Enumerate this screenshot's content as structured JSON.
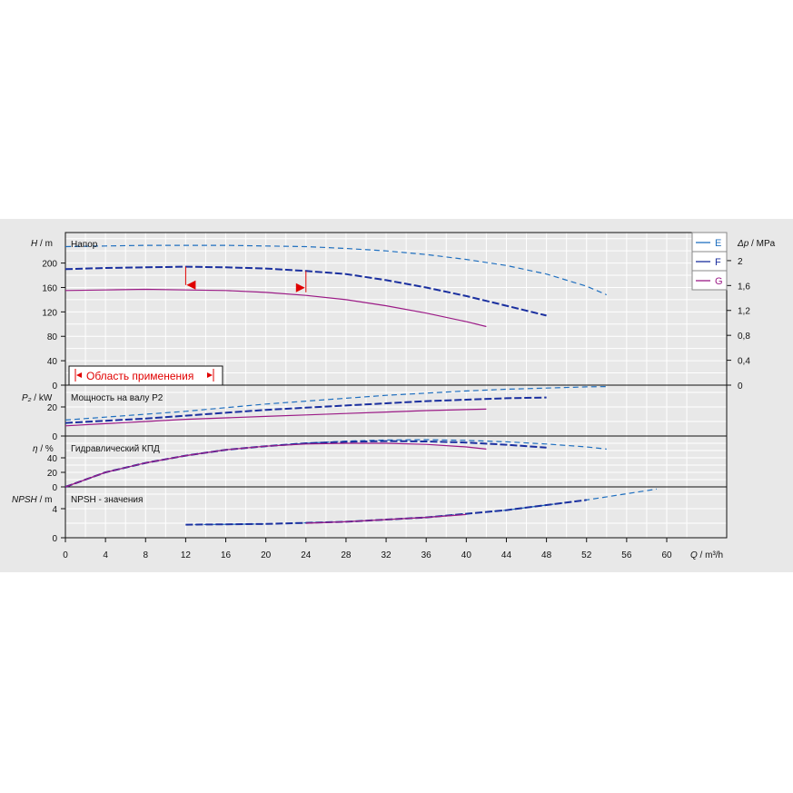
{
  "chart_data": {
    "type": "line",
    "x_axis": {
      "label_var": "Q",
      "label_unit": " / m³/h",
      "range": [
        0,
        62
      ],
      "ticks": [
        0,
        4,
        8,
        12,
        16,
        20,
        24,
        28,
        32,
        36,
        40,
        44,
        48,
        52,
        56,
        60
      ]
    },
    "grid": true,
    "legend": {
      "placement": "right",
      "entries": [
        {
          "label": "E",
          "color": "#1f6fbf",
          "dash": "6,4"
        },
        {
          "label": "F",
          "color": "#1a2f9f",
          "dash": "8,3"
        },
        {
          "label": "G",
          "color": "#9b1a86",
          "dash": "none"
        }
      ]
    },
    "operating_range": {
      "label": "Область применения",
      "x_start": 12,
      "x_end": 24,
      "marker_y": 164,
      "color": "#e00000"
    },
    "panels": [
      {
        "id": "head",
        "title": "Напор",
        "y_label_var": "H",
        "y_label_unit": " / m",
        "ylim": [
          0,
          250
        ],
        "y_ticks": [
          0,
          40,
          80,
          120,
          160,
          200
        ],
        "right_axis": {
          "label_var": "Δp",
          "label_unit": " / MPa",
          "ticks": [
            "0",
            "0,4",
            "0,8",
            "1,2",
            "1,6",
            "2"
          ],
          "tick_values_m": [
            0,
            40.8,
            81.6,
            122.4,
            163.2,
            204
          ]
        },
        "series": [
          {
            "name": "E",
            "x": [
              0,
              4,
              8,
              12,
              16,
              20,
              24,
              28,
              32,
              36,
              40,
              44,
              48,
              52,
              54
            ],
            "y": [
              227,
              228,
              229,
              229,
              229,
              228,
              227,
              224,
              220,
              214,
              206,
              196,
              182,
              162,
              148
            ]
          },
          {
            "name": "F",
            "x": [
              0,
              4,
              8,
              12,
              16,
              20,
              24,
              28,
              32,
              36,
              40,
              44,
              48
            ],
            "y": [
              190,
              192,
              193,
              194,
              193,
              191,
              187,
              182,
              172,
              160,
              146,
              130,
              114
            ]
          },
          {
            "name": "G",
            "x": [
              0,
              4,
              8,
              12,
              16,
              20,
              24,
              28,
              32,
              36,
              40,
              42
            ],
            "y": [
              155,
              156,
              157,
              156,
              155,
              152,
              147,
              140,
              130,
              118,
              104,
              96
            ]
          }
        ]
      },
      {
        "id": "power",
        "title": "Мощность на валу P2",
        "y_label_var": "P₂",
        "y_label_unit": " / kW",
        "ylim": [
          0,
          35
        ],
        "y_ticks": [
          0,
          20
        ],
        "series": [
          {
            "name": "E",
            "x": [
              0,
              4,
              8,
              12,
              16,
              20,
              24,
              28,
              32,
              36,
              40,
              44,
              48,
              52,
              54
            ],
            "y": [
              11,
              13,
              15,
              17,
              19.5,
              22,
              24,
              26,
              28,
              29.5,
              31,
              32.2,
              33,
              33.8,
              34
            ]
          },
          {
            "name": "F",
            "x": [
              0,
              4,
              8,
              12,
              16,
              20,
              24,
              28,
              32,
              36,
              40,
              44,
              48
            ],
            "y": [
              9,
              10.5,
              12,
              14,
              16,
              18,
              19.5,
              21,
              22.5,
              24,
              25,
              26,
              26.5
            ]
          },
          {
            "name": "G",
            "x": [
              0,
              4,
              8,
              12,
              16,
              20,
              24,
              28,
              32,
              36,
              40,
              42
            ],
            "y": [
              7,
              8.5,
              10,
              11.5,
              12.5,
              13.5,
              14.5,
              15.5,
              16.5,
              17.5,
              18.2,
              18.5
            ]
          }
        ]
      },
      {
        "id": "efficiency",
        "title": "Гидравлический КПД",
        "y_label_var": "η",
        "y_label_unit": " / %",
        "ylim": [
          0,
          70
        ],
        "y_ticks": [
          0,
          20,
          40
        ],
        "series": [
          {
            "name": "E",
            "x": [
              0,
              4,
              8,
              12,
              16,
              20,
              24,
              28,
              32,
              36,
              40,
              44,
              48,
              52,
              54
            ],
            "y": [
              0,
              20,
              33,
              43,
              51,
              56,
              60,
              63,
              64.5,
              65,
              64,
              62,
              59,
              55,
              52
            ]
          },
          {
            "name": "F",
            "x": [
              0,
              4,
              8,
              12,
              16,
              20,
              24,
              28,
              32,
              36,
              40,
              44,
              48
            ],
            "y": [
              0,
              20,
              33,
              43,
              51,
              56,
              60,
              62,
              63,
              62.5,
              61,
              58,
              54
            ]
          },
          {
            "name": "G",
            "x": [
              0,
              4,
              8,
              12,
              16,
              20,
              24,
              28,
              32,
              36,
              40,
              42
            ],
            "y": [
              0,
              20,
              33,
              43,
              51,
              56,
              59,
              60,
              60,
              58.5,
              55,
              52
            ]
          }
        ]
      },
      {
        "id": "npsh",
        "title": "NPSH - значения",
        "y_label_var": "NPSH",
        "y_label_unit": " / m",
        "ylim": [
          0,
          7
        ],
        "y_ticks": [
          0,
          4
        ],
        "series": [
          {
            "name": "E",
            "x": [
              12,
              20,
              28,
              36,
              44,
              52,
              59
            ],
            "y": [
              1.8,
              1.9,
              2.2,
              2.8,
              3.8,
              5.2,
              6.7
            ]
          },
          {
            "name": "F",
            "x": [
              12,
              20,
              28,
              36,
              44,
              52
            ],
            "y": [
              1.8,
              1.9,
              2.2,
              2.8,
              3.8,
              5.2
            ]
          },
          {
            "name": "G",
            "x": [
              24,
              28,
              36,
              40
            ],
            "y": [
              2.0,
              2.2,
              2.8,
              3.2
            ]
          }
        ]
      }
    ]
  }
}
